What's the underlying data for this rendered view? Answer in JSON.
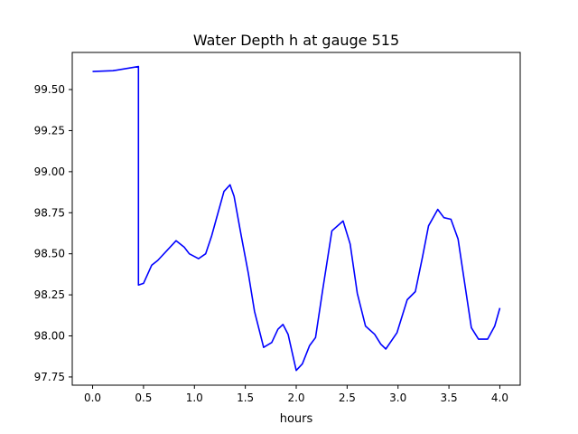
{
  "chart_data": {
    "type": "line",
    "title": "Water Depth h at gauge 515",
    "xlabel": "hours",
    "ylabel": "",
    "xlim": [
      -0.2,
      4.2
    ],
    "ylim": [
      97.7,
      99.726
    ],
    "xticks": [
      0.0,
      0.5,
      1.0,
      1.5,
      2.0,
      2.5,
      3.0,
      3.5,
      4.0
    ],
    "xtick_labels": [
      "0.0",
      "0.5",
      "1.0",
      "1.5",
      "2.0",
      "2.5",
      "3.0",
      "3.5",
      "4.0"
    ],
    "yticks": [
      97.75,
      98.0,
      98.25,
      98.5,
      98.75,
      99.0,
      99.25,
      99.5
    ],
    "ytick_labels": [
      "97.75",
      "98.00",
      "98.25",
      "98.50",
      "98.75",
      "99.00",
      "99.25",
      "99.50"
    ],
    "grid": false,
    "series": [
      {
        "name": "h",
        "color": "#0000ff",
        "x": [
          0,
          0.2,
          0.45,
          0.45,
          0.5,
          0.58,
          0.64,
          0.82,
          0.9,
          0.95,
          1.04,
          1.11,
          1.17,
          1.21,
          1.29,
          1.35,
          1.39,
          1.46,
          1.53,
          1.59,
          1.68,
          1.76,
          1.82,
          1.87,
          1.92,
          2.0,
          2.06,
          2.13,
          2.19,
          2.26,
          2.35,
          2.46,
          2.53,
          2.6,
          2.68,
          2.77,
          2.83,
          2.88,
          2.99,
          3.09,
          3.17,
          3.24,
          3.3,
          3.39,
          3.45,
          3.52,
          3.59,
          3.65,
          3.72,
          3.79,
          3.88,
          3.95,
          4.0
        ],
        "y": [
          99.61,
          99.615,
          99.64,
          98.31,
          98.32,
          98.43,
          98.46,
          98.58,
          98.54,
          98.5,
          98.47,
          98.5,
          98.61,
          98.7,
          98.88,
          98.92,
          98.85,
          98.61,
          98.38,
          98.15,
          97.93,
          97.96,
          98.04,
          98.07,
          98.01,
          97.79,
          97.83,
          97.94,
          97.99,
          98.28,
          98.64,
          98.7,
          98.56,
          98.26,
          98.06,
          98.01,
          97.95,
          97.92,
          98.02,
          98.22,
          98.27,
          98.48,
          98.67,
          98.77,
          98.72,
          98.71,
          98.59,
          98.34,
          98.05,
          97.98,
          97.98,
          98.06,
          98.17
        ]
      }
    ]
  }
}
